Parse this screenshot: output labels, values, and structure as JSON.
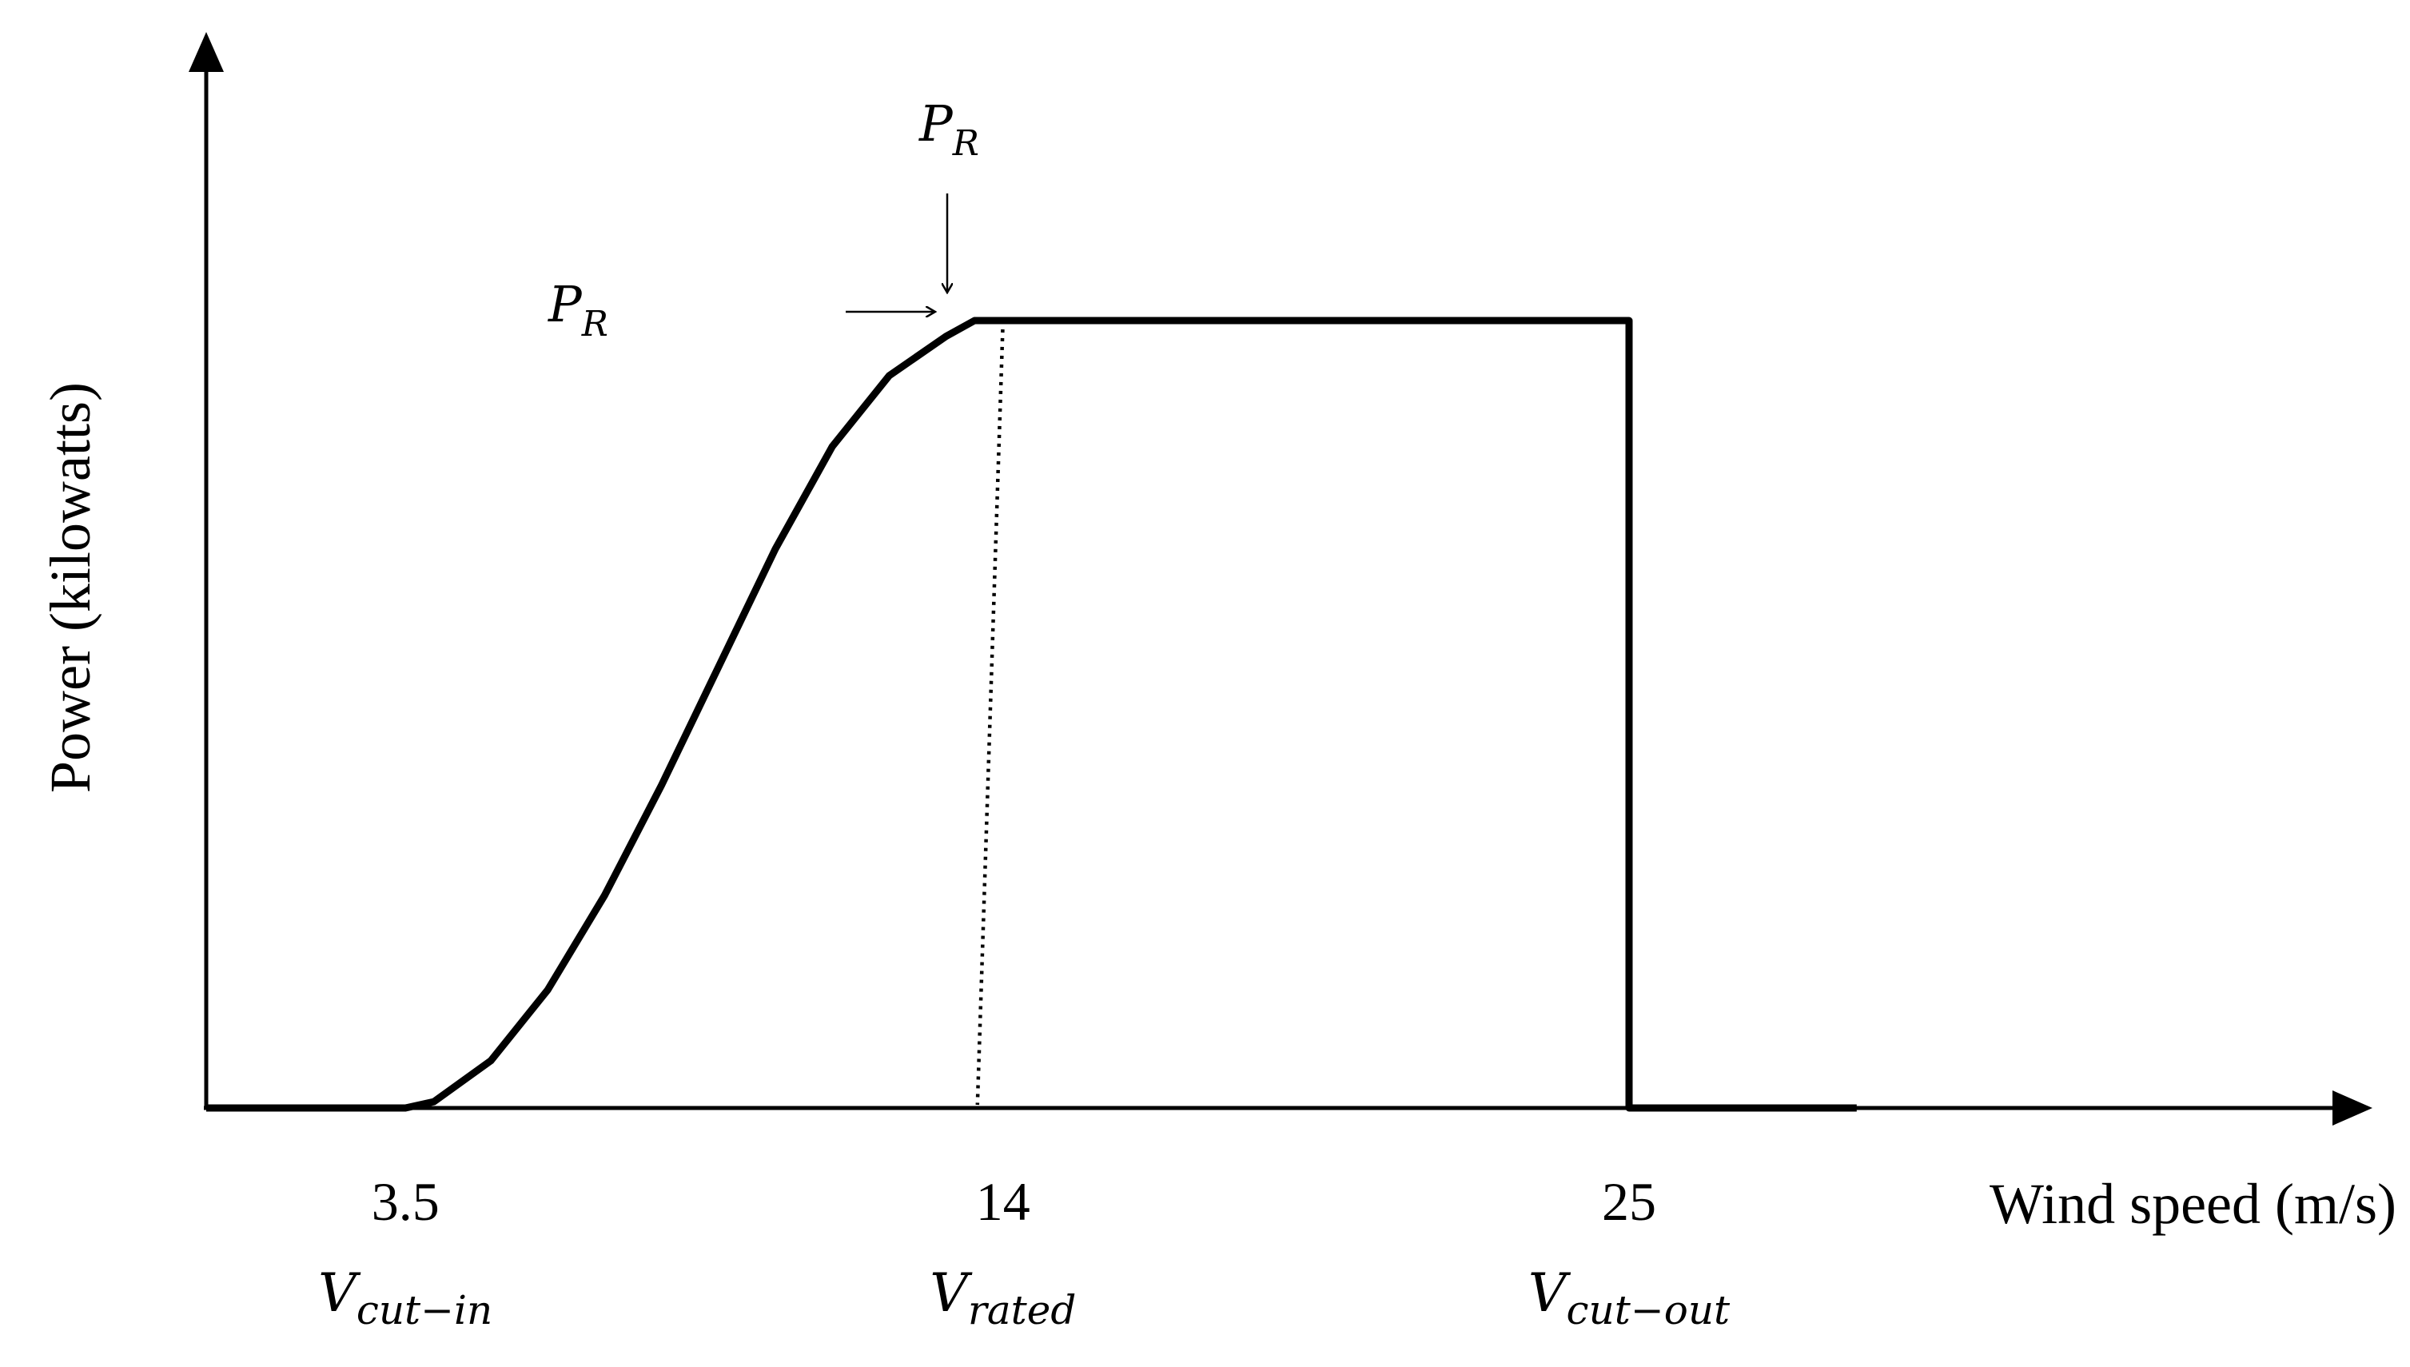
{
  "chart_data": {
    "type": "line",
    "title": "",
    "xlabel": "Wind speed (m/s)",
    "ylabel": "Power (kilowatts)",
    "x_ticks": [
      {
        "value": 3.5,
        "label": "3.5",
        "symbol": "V",
        "subscript": "cut−in"
      },
      {
        "value": 14,
        "label": "14",
        "symbol": "V",
        "subscript": "rated"
      },
      {
        "value": 25,
        "label": "25",
        "symbol": "V",
        "subscript": "cut−out"
      }
    ],
    "annotations": [
      {
        "symbol": "P",
        "subscript": "R",
        "arrow": "down"
      },
      {
        "symbol": "P",
        "subscript": "R",
        "arrow": "right"
      }
    ],
    "series": [
      {
        "x": [
          0,
          3.5,
          4,
          5,
          6,
          7,
          8,
          9,
          10,
          11,
          12,
          13,
          13.5,
          14.5,
          25,
          25,
          29
        ],
        "y": [
          0,
          0,
          0.008,
          0.06,
          0.15,
          0.27,
          0.41,
          0.56,
          0.71,
          0.84,
          0.93,
          0.98,
          1,
          1,
          1,
          0,
          0
        ]
      }
    ],
    "rated_marker": {
      "x": 14,
      "style": "dotted"
    },
    "grid": false,
    "legend": "none"
  }
}
